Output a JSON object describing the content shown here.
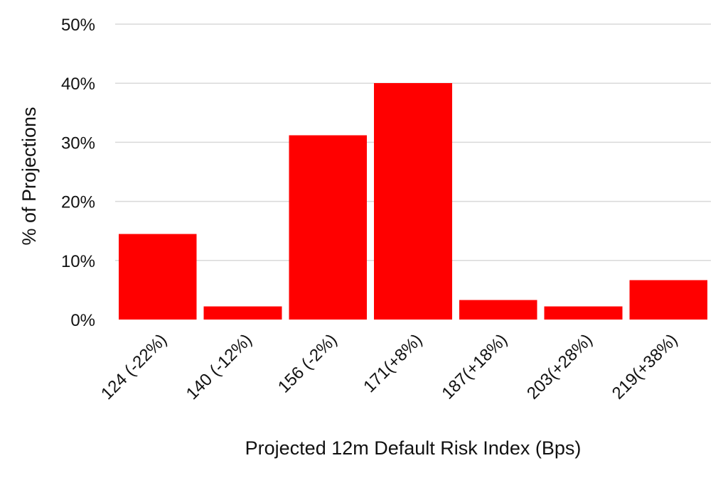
{
  "chart_data": {
    "type": "bar",
    "categories": [
      "124 (-22%)",
      "140 (-12%)",
      "156 (-2%)",
      "171(+8%)",
      "187(+18%)",
      "203(+28%)",
      "219(+38%)"
    ],
    "values": [
      14.5,
      2.2,
      31.2,
      40.0,
      3.3,
      2.2,
      6.7
    ],
    "title": "",
    "xlabel": "Projected 12m Default Risk Index (Bps)",
    "ylabel": "% of Projections",
    "ylim": [
      0,
      50
    ],
    "yticks": [
      "0%",
      "10%",
      "20%",
      "30%",
      "40%",
      "50%"
    ],
    "bar_color": "#ff0000",
    "grid": true,
    "legend": "none"
  }
}
